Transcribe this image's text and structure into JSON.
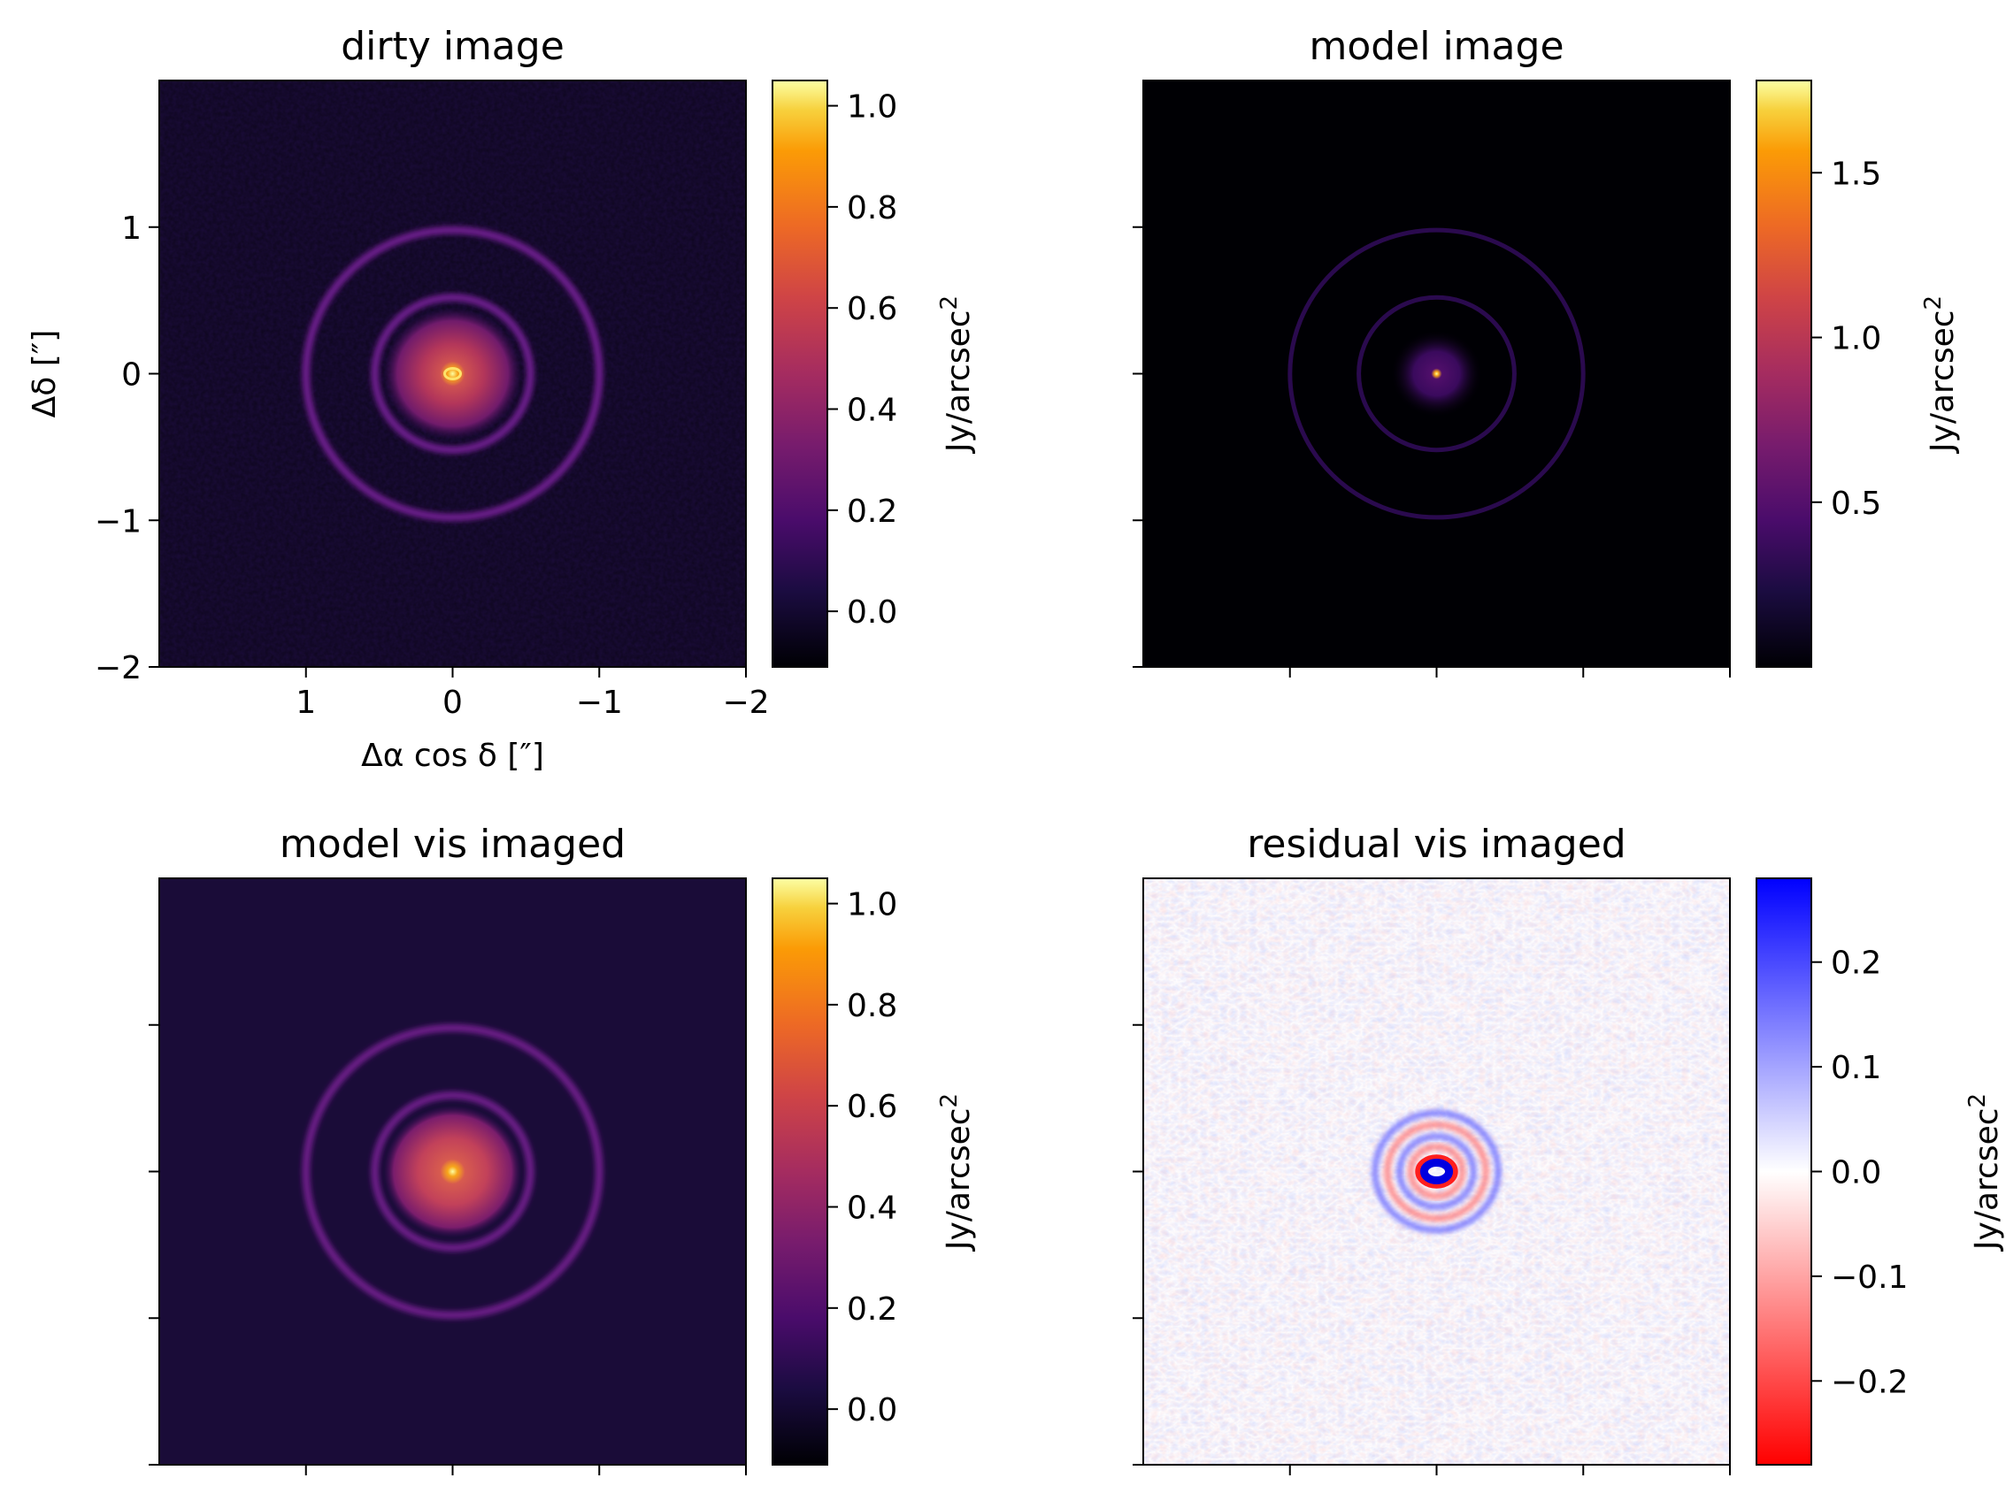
{
  "chart_data": [
    {
      "type": "heatmap",
      "title": "dirty image",
      "xlabel": "Δα cos δ [″]",
      "ylabel": "Δδ [″]",
      "xlim": [
        2,
        -2
      ],
      "ylim": [
        -2,
        2
      ],
      "x_ticks": [
        1,
        0,
        -1,
        -2
      ],
      "x_tick_labels": [
        "1",
        "0",
        "−1",
        "−2"
      ],
      "y_ticks": [
        1,
        0,
        -1,
        -2
      ],
      "y_tick_labels": [
        "1",
        "0",
        "−1",
        "−2"
      ],
      "colormap": "inferno",
      "colorbar": {
        "label": "Jy/arcsec2",
        "range": [
          -0.11,
          1.05
        ],
        "ticks": [
          0.0,
          0.2,
          0.4,
          0.6,
          0.8,
          1.0
        ],
        "tick_labels": [
          "0.0",
          "0.2",
          "0.4",
          "0.6",
          "0.8",
          "1.0"
        ]
      },
      "features": {
        "rings_arcsec": [
          0.52,
          0.98
        ],
        "core_radius_arcsec": 0.45,
        "peak_value": 1.05,
        "noise": true
      }
    },
    {
      "type": "heatmap",
      "title": "model image",
      "xlim": [
        2,
        -2
      ],
      "ylim": [
        -2,
        2
      ],
      "x_ticks": [
        1,
        0,
        -1,
        -2
      ],
      "y_ticks": [
        1,
        0,
        -1,
        -2
      ],
      "colormap": "inferno",
      "colorbar": {
        "label": "Jy/arcsec2",
        "range": [
          0.0,
          1.78
        ],
        "ticks": [
          0.5,
          1.0,
          1.5
        ],
        "tick_labels": [
          "0.5",
          "1.0",
          "1.5"
        ]
      },
      "features": {
        "rings_arcsec": [
          0.52,
          0.98
        ],
        "core_radius_arcsec": 0.3,
        "peak_value": 1.78,
        "noise": false
      }
    },
    {
      "type": "heatmap",
      "title": "model vis imaged",
      "xlim": [
        2,
        -2
      ],
      "ylim": [
        -2,
        2
      ],
      "x_ticks": [
        1,
        0,
        -1,
        -2
      ],
      "y_ticks": [
        1,
        0,
        -1,
        -2
      ],
      "colormap": "inferno",
      "colorbar": {
        "label": "Jy/arcsec2",
        "range": [
          -0.11,
          1.05
        ],
        "ticks": [
          0.0,
          0.2,
          0.4,
          0.6,
          0.8,
          1.0
        ],
        "tick_labels": [
          "0.0",
          "0.2",
          "0.4",
          "0.6",
          "0.8",
          "1.0"
        ]
      },
      "features": {
        "rings_arcsec": [
          0.52,
          0.98
        ],
        "core_radius_arcsec": 0.45,
        "peak_value": 1.05,
        "noise": false
      }
    },
    {
      "type": "heatmap",
      "title": "residual vis imaged",
      "xlim": [
        2,
        -2
      ],
      "ylim": [
        -2,
        2
      ],
      "x_ticks": [
        1,
        0,
        -1,
        -2
      ],
      "y_ticks": [
        1,
        0,
        -1,
        -2
      ],
      "colormap": "bwr_r",
      "colorbar": {
        "label": "Jy/arcsec2",
        "range": [
          -0.28,
          0.28
        ],
        "ticks": [
          0.2,
          0.1,
          0.0,
          -0.1,
          -0.2
        ],
        "tick_labels": [
          "0.2",
          "0.1",
          "0.0",
          "−0.1",
          "−0.2"
        ]
      },
      "features": {
        "residual_ring_arcsec": 0.1,
        "residual_halo_arcsec": 0.4,
        "noise": true
      }
    }
  ]
}
